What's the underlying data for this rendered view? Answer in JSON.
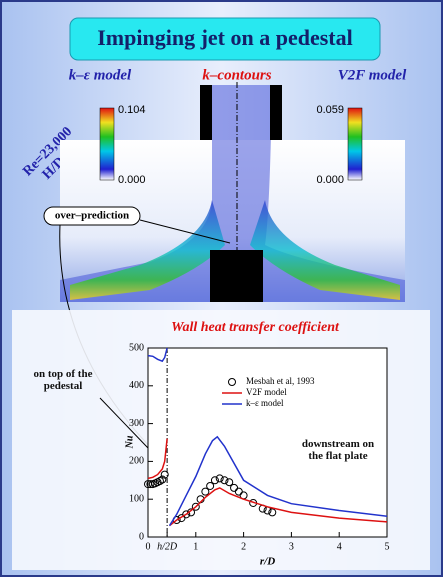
{
  "title": "Impinging jet on a pedestal",
  "contour": {
    "left_model": "k–ε model",
    "center_label": "k–contours",
    "right_model": "V2F model",
    "left_scale": {
      "max": "0.104",
      "min": "0.000"
    },
    "right_scale": {
      "max": "0.059",
      "min": "0.000"
    },
    "conditions": [
      "Re=23,000",
      "H/D=2"
    ],
    "annotation": "over–prediction"
  },
  "chart_data": {
    "type": "line",
    "title": "Wall heat transfer coefficient",
    "x_label": "r/D",
    "y_label": "Nu",
    "xlim": [
      0,
      5
    ],
    "ylim": [
      0,
      500
    ],
    "xticks": [
      0,
      {
        "value": 0.4,
        "label": "h/2D"
      },
      1,
      2,
      3,
      4,
      5
    ],
    "yticks": [
      0,
      100,
      200,
      300,
      400,
      500
    ],
    "annotations": [
      "on top of the pedestal",
      "downstream on the flat plate"
    ],
    "series": [
      {
        "name": "Mesbah et al, 1993",
        "color": "#000000",
        "marker": "circle",
        "x": [
          0,
          0.05,
          0.1,
          0.15,
          0.2,
          0.25,
          0.3,
          0.35,
          0.6,
          0.7,
          0.8,
          0.9,
          1.0,
          1.1,
          1.2,
          1.3,
          1.4,
          1.5,
          1.6,
          1.7,
          1.8,
          1.9,
          2.0,
          2.2,
          2.4,
          2.5,
          2.6
        ],
        "values": [
          140,
          140,
          140,
          142,
          145,
          148,
          152,
          165,
          45,
          50,
          60,
          65,
          80,
          100,
          120,
          135,
          150,
          155,
          150,
          145,
          130,
          120,
          110,
          90,
          75,
          70,
          65
        ]
      },
      {
        "name": "V2F model",
        "color": "#dd1111",
        "x": [
          0,
          0.1,
          0.2,
          0.3,
          0.35,
          0.4,
          null,
          0.45,
          0.6,
          0.8,
          1.0,
          1.2,
          1.4,
          1.5,
          1.7,
          2.0,
          2.5,
          3.0,
          4.0,
          5.0
        ],
        "values": [
          155,
          158,
          165,
          180,
          200,
          260,
          null,
          30,
          45,
          60,
          80,
          105,
          125,
          130,
          115,
          100,
          80,
          65,
          50,
          40
        ]
      },
      {
        "name": "k–ε model",
        "color": "#2233cc",
        "x": [
          0,
          0.1,
          0.2,
          0.3,
          0.35,
          0.4,
          null,
          0.45,
          0.6,
          0.8,
          1.0,
          1.2,
          1.35,
          1.45,
          1.6,
          2.0,
          2.5,
          3.0,
          4.0,
          5.0
        ],
        "values": [
          480,
          478,
          470,
          465,
          475,
          500,
          null,
          30,
          60,
          110,
          160,
          220,
          255,
          265,
          240,
          150,
          110,
          88,
          70,
          55
        ]
      }
    ]
  }
}
